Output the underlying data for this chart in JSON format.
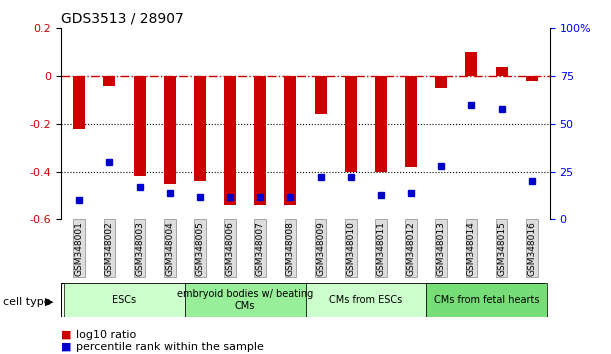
{
  "title": "GDS3513 / 28907",
  "samples": [
    "GSM348001",
    "GSM348002",
    "GSM348003",
    "GSM348004",
    "GSM348005",
    "GSM348006",
    "GSM348007",
    "GSM348008",
    "GSM348009",
    "GSM348010",
    "GSM348011",
    "GSM348012",
    "GSM348013",
    "GSM348014",
    "GSM348015",
    "GSM348016"
  ],
  "log10_ratio": [
    -0.22,
    -0.04,
    -0.42,
    -0.45,
    -0.44,
    -0.54,
    -0.54,
    -0.54,
    -0.16,
    -0.4,
    -0.4,
    -0.38,
    -0.05,
    0.1,
    0.04,
    -0.02
  ],
  "percentile_rank": [
    10,
    30,
    17,
    14,
    12,
    12,
    12,
    12,
    22,
    22,
    13,
    14,
    28,
    60,
    58,
    20
  ],
  "bar_color": "#cc0000",
  "dot_color": "#0000cc",
  "ref_line_color": "#cc0000",
  "dotted_line_color": "#000000",
  "ylim_left": [
    -0.6,
    0.2
  ],
  "ylim_right": [
    0,
    100
  ],
  "yticks_left": [
    0.2,
    0.0,
    -0.2,
    -0.4,
    -0.6
  ],
  "ytick_left_labels": [
    "0.2",
    "0",
    "-0.2",
    "-0.4",
    "-0.6"
  ],
  "yticks_right": [
    100,
    75,
    50,
    25,
    0
  ],
  "ytick_right_labels": [
    "100%",
    "75",
    "50",
    "25",
    "0"
  ],
  "cell_types": [
    {
      "label": "ESCs",
      "start": 0,
      "end": 3,
      "color": "#ccffcc"
    },
    {
      "label": "embryoid bodies w/ beating\nCMs",
      "start": 4,
      "end": 7,
      "color": "#99ee99"
    },
    {
      "label": "CMs from ESCs",
      "start": 8,
      "end": 11,
      "color": "#ccffcc"
    },
    {
      "label": "CMs from fetal hearts",
      "start": 12,
      "end": 15,
      "color": "#77dd77"
    }
  ],
  "legend_items": [
    {
      "label": "log10 ratio",
      "color": "#cc0000"
    },
    {
      "label": "percentile rank within the sample",
      "color": "#0000cc"
    }
  ],
  "cell_type_label": "cell type"
}
